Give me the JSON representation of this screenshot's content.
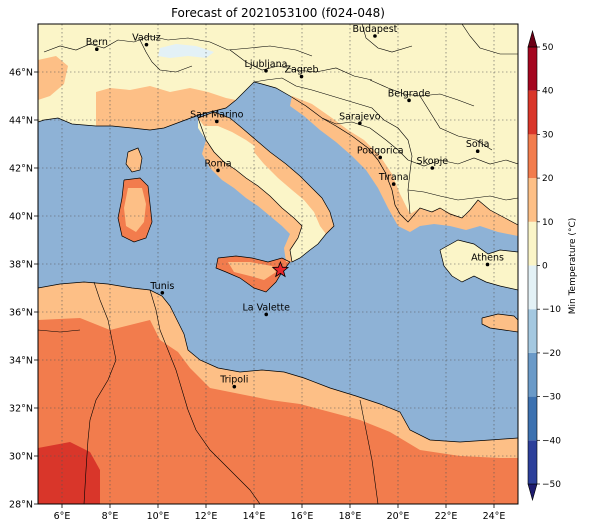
{
  "title": "Forecast of 2021053100 (f024-048)",
  "map": {
    "lon_range": [
      5,
      25
    ],
    "lat_range": [
      28,
      48
    ],
    "lon_ticks": [
      {
        "value": 6,
        "label": "6°E"
      },
      {
        "value": 8,
        "label": "8°E"
      },
      {
        "value": 10,
        "label": "10°E"
      },
      {
        "value": 12,
        "label": "12°E"
      },
      {
        "value": 14,
        "label": "14°E"
      },
      {
        "value": 16,
        "label": "16°E"
      },
      {
        "value": 18,
        "label": "18°E"
      },
      {
        "value": 20,
        "label": "20°E"
      },
      {
        "value": 22,
        "label": "22°E"
      },
      {
        "value": 24,
        "label": "24°E"
      }
    ],
    "lat_ticks": [
      {
        "value": 28,
        "label": "28°N"
      },
      {
        "value": 30,
        "label": "30°N"
      },
      {
        "value": 32,
        "label": "32°N"
      },
      {
        "value": 34,
        "label": "34°N"
      },
      {
        "value": 36,
        "label": "36°N"
      },
      {
        "value": 38,
        "label": "38°N"
      },
      {
        "value": 40,
        "label": "40°N"
      },
      {
        "value": 42,
        "label": "42°N"
      },
      {
        "value": 44,
        "label": "44°N"
      },
      {
        "value": 46,
        "label": "46°N"
      }
    ],
    "cities": [
      {
        "name": "Bern",
        "lon": 7.45,
        "lat": 46.95
      },
      {
        "name": "Vaduz",
        "lon": 9.52,
        "lat": 47.14
      },
      {
        "name": "Budapest",
        "lon": 19.04,
        "lat": 47.5
      },
      {
        "name": "Ljubljana",
        "lon": 14.5,
        "lat": 46.05
      },
      {
        "name": "Zagreb",
        "lon": 15.98,
        "lat": 45.81
      },
      {
        "name": "Belgrade",
        "lon": 20.46,
        "lat": 44.82
      },
      {
        "name": "San Marino",
        "lon": 12.45,
        "lat": 43.94
      },
      {
        "name": "Sarajevo",
        "lon": 18.41,
        "lat": 43.86
      },
      {
        "name": "Sofia",
        "lon": 23.32,
        "lat": 42.7
      },
      {
        "name": "Podgorica",
        "lon": 19.26,
        "lat": 42.44
      },
      {
        "name": "Skopje",
        "lon": 21.43,
        "lat": 42.0
      },
      {
        "name": "Roma",
        "lon": 12.5,
        "lat": 41.9
      },
      {
        "name": "Tirana",
        "lon": 19.82,
        "lat": 41.33
      },
      {
        "name": "Athens",
        "lon": 23.73,
        "lat": 37.98
      },
      {
        "name": "Tunis",
        "lon": 10.18,
        "lat": 36.8
      },
      {
        "name": "La Valette",
        "lon": 14.51,
        "lat": 35.9
      },
      {
        "name": "Tripoli",
        "lon": 13.18,
        "lat": 32.89
      }
    ],
    "marker": {
      "symbol": "star",
      "lon": 15.1,
      "lat": 37.75,
      "color": "#e8262b"
    }
  },
  "colorbar": {
    "label": "Min Temperature (°C)",
    "min": -50,
    "max": 50,
    "ticks": [
      -50,
      -40,
      -30,
      -20,
      -10,
      0,
      10,
      20,
      30,
      40,
      50
    ],
    "tick_labels": [
      "−50",
      "−40",
      "−30",
      "−20",
      "−10",
      "0",
      "10",
      "20",
      "30",
      "40",
      "50"
    ],
    "colors": [
      "#1d1b6e",
      "#2c3f9a",
      "#3c71b0",
      "#6a9ac8",
      "#a4c8e0",
      "#e3f1f6",
      "#fbf5c8",
      "#fdbf86",
      "#f27c4d",
      "#d9362a",
      "#a4061f",
      "#6b0016"
    ],
    "sea_color": "#8eb2d6"
  }
}
